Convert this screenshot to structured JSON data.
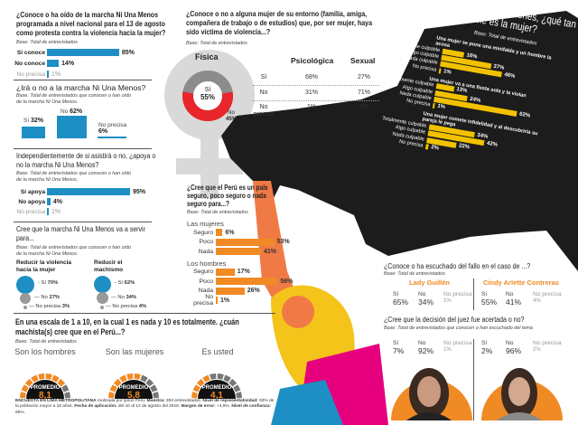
{
  "q1": {
    "title": "¿Conoce o ha oído de la marcha Ni Una Menos programada a nivel nacional para el 13 de agosto como protesta contra la violencia hacia la mujer?",
    "base": "Base: Total de entrevistados",
    "rows": [
      {
        "label": "Sí conoce",
        "value": 85,
        "text": "85%"
      },
      {
        "label": "No conoce",
        "value": 14,
        "text": "14%"
      },
      {
        "label": "No precisa",
        "value": 1,
        "text": "1%"
      }
    ]
  },
  "q2": {
    "title": "¿Irá o no a la marcha Ni Una Menos?",
    "base": "Base: Total de entrevistados que conocen o han oído de la marcha Ni Una Menos.",
    "bars": [
      {
        "label": "Sí",
        "value": 32,
        "text": "32%"
      },
      {
        "label": "No",
        "value": 62,
        "text": "62%"
      },
      {
        "label": "No precisa",
        "value": 6,
        "text": "6%"
      }
    ]
  },
  "q3": {
    "title": "Independientemente de si asistirá o no, ¿apoya o no la marcha Ni Una Menos?",
    "base": "Base: Total de entrevistados que conocen o han oído de la marcha Ni Una Menos.",
    "rows": [
      {
        "label": "Sí apoya",
        "value": 95,
        "text": "95%"
      },
      {
        "label": "No apoya",
        "value": 4,
        "text": "4%"
      },
      {
        "label": "No precisa",
        "value": 1,
        "text": "1%"
      }
    ]
  },
  "q4": {
    "title": "Cree que la marcha Ni Una Menos va a servir para...",
    "base": "Base: Total de entrevistados que conocen o han oído de la marcha Ni Una Menos.",
    "groups": [
      {
        "title": "Reducir la violencia hacia la mujer",
        "si": "70%",
        "no": "27%",
        "np": "3%"
      },
      {
        "title": "Reducir el machismo",
        "si": "62%",
        "no": "34%",
        "np": "4%"
      }
    ],
    "labels": {
      "si": "Sí",
      "no": "No",
      "np": "No precisa"
    }
  },
  "violence": {
    "title": "¿Conoce o no a alguna mujer de su entorno (familia, amiga, compañera de trabajo o de estudios) que, por ser mujer, haya sido víctima de violencia...?",
    "base": "Base: Total de entrevistados",
    "fisica": {
      "label": "Física",
      "si_label": "Sí",
      "si": 55,
      "si_text": "55%",
      "no_label": "No",
      "no_text": "45%"
    },
    "headers": [
      "Psicológica",
      "Sexual"
    ],
    "rows": [
      {
        "label": "Sí",
        "psic": "68%",
        "sex": "27%"
      },
      {
        "label": "No",
        "psic": "31%",
        "sex": "71%"
      },
      {
        "label": "No precisa",
        "psic": "1%",
        "sex": "2%"
      }
    ],
    "colors": {
      "si": "#e8262b",
      "no": "#8c8c8c"
    }
  },
  "boot": {
    "title": "En estas situaciones, ¿qué tan culpable es la mujer?",
    "base": "Base: Total de entrevistados",
    "situations": [
      {
        "title": "Una mujer se pone una minifalda y un hombre la acosa",
        "rows": [
          {
            "label": "Totalmente culpable",
            "value": 16
          },
          {
            "label": "Algo culpable",
            "value": 37
          },
          {
            "label": "Nada culpable",
            "value": 46
          },
          {
            "label": "No precisa",
            "value": 1
          }
        ]
      },
      {
        "title": "Una mujer va a una fiesta sola y la violan",
        "rows": [
          {
            "label": "Totalmente culpable",
            "value": 13
          },
          {
            "label": "Algo culpable",
            "value": 24
          },
          {
            "label": "Nada culpable",
            "value": 62
          },
          {
            "label": "No precisa",
            "value": 1
          }
        ]
      },
      {
        "title": "Una mujer comete infidelidad y al descubrirla su pareja le pega",
        "rows": [
          {
            "label": "Totalmente culpable",
            "value": 34
          },
          {
            "label": "Algo culpable",
            "value": 42
          },
          {
            "label": "Nada culpable",
            "value": 22
          },
          {
            "label": "No precisa",
            "value": 2
          }
        ]
      }
    ]
  },
  "safety": {
    "title": "¿Cree que el Perú es un país seguro, poco seguro o nada seguro para...?",
    "base": "Base: Total de entrevistados",
    "groups": [
      {
        "title": "Las mujeres",
        "rows": [
          {
            "label": "Seguro",
            "value": 6
          },
          {
            "label": "Poco",
            "value": 53
          },
          {
            "label": "Nada",
            "value": 41
          }
        ]
      },
      {
        "title": "Los hombres",
        "rows": [
          {
            "label": "Seguro",
            "value": 17
          },
          {
            "label": "Poco",
            "value": 56
          },
          {
            "label": "Nada",
            "value": 26
          },
          {
            "label": "No precisa",
            "value": 1
          }
        ]
      }
    ]
  },
  "fallo": {
    "title": "¿Conoce o ha escuchado del fallo en el caso de ...?",
    "base": "Base: Total de entrevistados",
    "labels": {
      "si": "Sí",
      "no": "No",
      "np": "No precisa"
    },
    "persons": [
      {
        "name": "Lady Guillén",
        "si": "65%",
        "no": "34%",
        "np": "1%"
      },
      {
        "name": "Cindy Arlette Contreras",
        "si": "55%",
        "no": "41%",
        "np": "4%"
      }
    ],
    "q2_title": "¿Cree que la decisión del juez fue acertada o no?",
    "q2_base": "Base: Total de entrevistados que conocen o han escuchado del tema",
    "decision": [
      {
        "si": "7%",
        "no": "92%",
        "np": "1%"
      },
      {
        "si": "2%",
        "no": "96%",
        "np": "2%"
      }
    ]
  },
  "scale": {
    "title": "En una escala de 1 a 10, en la cual 1 es nada y 10 es totalmente. ¿cuán machista(s) cree que en el Perú...?",
    "base": "Base: Total de entrevistados",
    "gauge_label": "PROMEDIO",
    "gauges": [
      {
        "label": "Son los hombres",
        "value": 8.1,
        "text": "8,1"
      },
      {
        "label": "Son las mujeres",
        "value": 5.8,
        "text": "5,8"
      },
      {
        "label": "Es usted",
        "value": 4.1,
        "text": "4,1"
      }
    ]
  },
  "footer": [
    {
      "b": true,
      "t": "ENCUESTA EN LIMA METROPOLITANA"
    },
    {
      "b": false,
      "t": " realizada por Ipsos Perú. "
    },
    {
      "b": true,
      "t": "Muestra:"
    },
    {
      "b": false,
      "t": " 393 entrevistados. "
    },
    {
      "b": true,
      "t": "Nivel de representatividad:"
    },
    {
      "b": false,
      "t": " 93% de la población mayor a 18 años. "
    },
    {
      "b": true,
      "t": "Fecha de aplicación:"
    },
    {
      "b": false,
      "t": " del 10 al 12 de agosto del 2016. "
    },
    {
      "b": true,
      "t": "Margen de error:"
    },
    {
      "b": false,
      "t": " +4,9%. "
    },
    {
      "b": true,
      "t": "Nivel de confianza:"
    },
    {
      "b": false,
      "t": " 95%."
    }
  ],
  "colors": {
    "blue": "#1e8fc4",
    "orange": "#f08a24",
    "yellow": "#f2c200",
    "boot": "#1c1c1c",
    "red": "#e8262b",
    "gray": "#8c8c8c"
  }
}
